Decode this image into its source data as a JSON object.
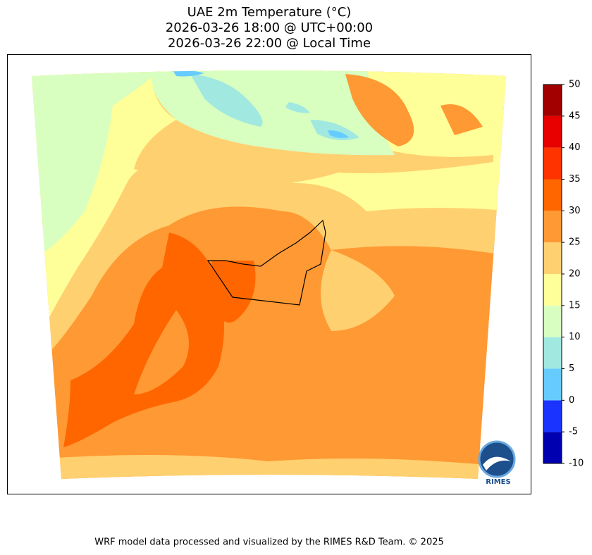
{
  "map": {
    "title": [
      "UAE 2m Temperature (°C)",
      "2026-03-26 18:00 @ UTC+00:00",
      "2026-03-26 22:00 @ Local Time"
    ],
    "colorbar": {
      "ticks": [
        -10,
        -5,
        0,
        5,
        10,
        15,
        20,
        25,
        30,
        35,
        40,
        45,
        50
      ],
      "colors": [
        "#0000b0",
        "#1a33ff",
        "#66ccff",
        "#a0e8e0",
        "#d8ffc0",
        "#ffff99",
        "#ffd070",
        "#ff9933",
        "#ff6600",
        "#ff3300",
        "#e60000",
        "#a00000"
      ]
    },
    "logo": "RIMES",
    "footer": "WRF model data processed and visualized by the RIMES R&D Team. © 2025"
  }
}
